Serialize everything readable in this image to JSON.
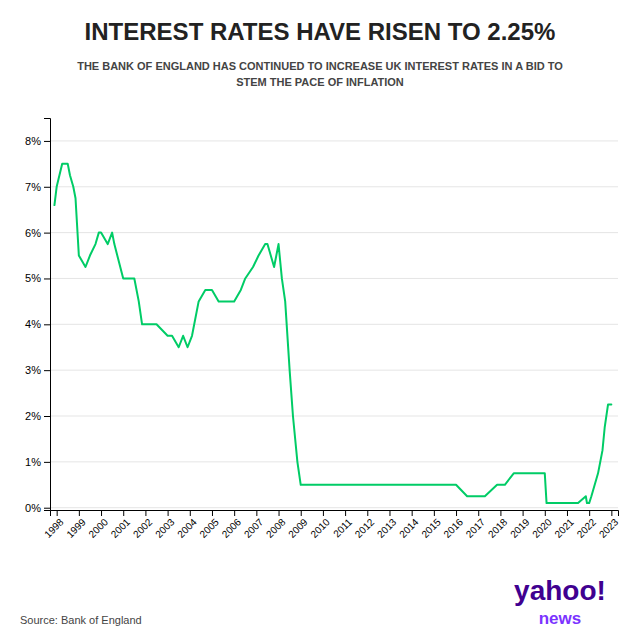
{
  "chart_data": {
    "type": "line",
    "title": "INTEREST RATES HAVE RISEN TO 2.25%",
    "subtitle": "THE BANK OF ENGLAND HAS CONTINUED TO INCREASE UK INTEREST RATES IN A BID TO\nSTEM THE PACE OF INFLATION",
    "source": "Source: Bank of England",
    "annotations": [
      {
        "text": "yahoo!",
        "color": "#400090"
      },
      {
        "text": "news",
        "color": "#7B33FF"
      }
    ],
    "x": [
      1997.9,
      1998.0,
      1998.25,
      1998.5,
      1998.6,
      1998.75,
      1998.85,
      1999.0,
      1999.3,
      1999.5,
      1999.75,
      1999.9,
      2000.0,
      2000.3,
      2000.5,
      2000.6,
      2001.0,
      2001.5,
      2001.7,
      2001.85,
      2002.1,
      2002.5,
      2003.0,
      2003.2,
      2003.5,
      2003.7,
      2003.9,
      2004.1,
      2004.4,
      2004.7,
      2004.85,
      2005.0,
      2005.3,
      2005.6,
      2005.85,
      2006.0,
      2006.3,
      2006.5,
      2006.85,
      2007.1,
      2007.4,
      2007.5,
      2007.65,
      2007.8,
      2008.0,
      2008.15,
      2008.3,
      2008.5,
      2008.65,
      2008.85,
      2009.0,
      2009.3,
      2009.5,
      2010.0,
      2011.0,
      2012.0,
      2013.0,
      2014.0,
      2015.0,
      2015.5,
      2016.0,
      2016.5,
      2016.8,
      2017.0,
      2017.3,
      2017.85,
      2018.0,
      2018.2,
      2018.6,
      2018.9,
      2019.0,
      2019.5,
      2019.9,
      2020.0,
      2020.08,
      2020.15,
      2020.4,
      2020.6,
      2020.9,
      2021.0,
      2021.5,
      2021.85,
      2021.9,
      2022.0,
      2022.1,
      2022.25,
      2022.4,
      2022.6,
      2022.7,
      2022.85,
      2023.0
    ],
    "values": [
      6.6,
      7.0,
      7.5,
      7.5,
      7.25,
      7.0,
      6.75,
      5.5,
      5.25,
      5.5,
      5.75,
      6.0,
      6.0,
      5.75,
      6.0,
      5.75,
      5.0,
      5.0,
      4.5,
      4.0,
      4.0,
      4.0,
      3.75,
      3.75,
      3.5,
      3.75,
      3.5,
      3.75,
      4.5,
      4.75,
      4.75,
      4.75,
      4.5,
      4.5,
      4.5,
      4.5,
      4.75,
      5.0,
      5.25,
      5.5,
      5.75,
      5.75,
      5.5,
      5.25,
      5.75,
      5.0,
      4.5,
      3.0,
      2.0,
      1.0,
      0.5,
      0.5,
      0.5,
      0.5,
      0.5,
      0.5,
      0.5,
      0.5,
      0.5,
      0.5,
      0.5,
      0.25,
      0.25,
      0.25,
      0.25,
      0.5,
      0.5,
      0.5,
      0.75,
      0.75,
      0.75,
      0.75,
      0.75,
      0.75,
      0.1,
      0.1,
      0.1,
      0.1,
      0.1,
      0.1,
      0.1,
      0.25,
      0.1,
      0.1,
      0.25,
      0.5,
      0.75,
      1.25,
      1.75,
      2.25,
      2.25
    ],
    "color": "#00cc66",
    "xlim": [
      1997.7,
      2023.3
    ],
    "ylim": [
      -0.05,
      8.5
    ],
    "xticks": [
      1998,
      1999,
      2000,
      2001,
      2002,
      2003,
      2004,
      2005,
      2006,
      2007,
      2008,
      2009,
      2010,
      2011,
      2012,
      2013,
      2014,
      2015,
      2016,
      2017,
      2018,
      2019,
      2020,
      2021,
      2022,
      2023
    ],
    "yticks": [
      {
        "value": 0,
        "label": "0%"
      },
      {
        "value": 1,
        "label": "1%"
      },
      {
        "value": 2,
        "label": "2%"
      },
      {
        "value": 3,
        "label": "3%"
      },
      {
        "value": 4,
        "label": "4%"
      },
      {
        "value": 5,
        "label": "5%"
      },
      {
        "value": 6,
        "label": "6%"
      },
      {
        "value": 7,
        "label": "7%"
      },
      {
        "value": 8,
        "label": "8%"
      }
    ],
    "grid": true
  }
}
